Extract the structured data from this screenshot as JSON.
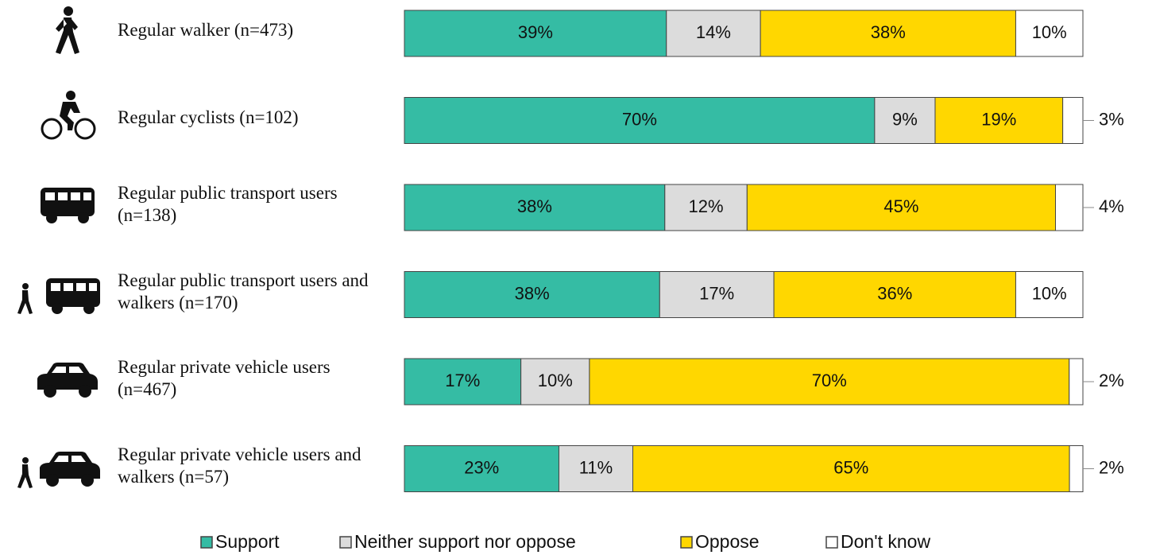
{
  "chart_data": {
    "type": "stacked-bar",
    "categories": [
      "Regular walker (n=473)",
      "Regular cyclists (n=102)",
      "Regular public transport users (n=138)",
      "Regular public transport users and walkers (n=170)",
      "Regular private vehicle users (n=467)",
      "Regular private vehicle users and walkers (n=57)"
    ],
    "series": [
      {
        "name": "Support",
        "color": "#35bca4",
        "values": [
          39,
          70,
          38,
          38,
          17,
          23
        ],
        "value_labels": [
          "39%",
          "70%",
          "38%",
          "38%",
          "17%",
          "23%"
        ]
      },
      {
        "name": "Neither support nor oppose",
        "color": "#dcdcdc",
        "values": [
          14,
          9,
          12,
          17,
          10,
          11
        ],
        "value_labels": [
          "14%",
          "9%",
          "12%",
          "17%",
          "10%",
          "11%"
        ]
      },
      {
        "name": "Oppose",
        "color": "#ffd700",
        "values": [
          38,
          19,
          45,
          36,
          70,
          65
        ],
        "value_labels": [
          "38%",
          "19%",
          "45%",
          "36%",
          "70%",
          "65%"
        ]
      },
      {
        "name": "Don't know",
        "color": "#ffffff",
        "values": [
          10,
          3,
          4,
          10,
          2,
          2
        ],
        "value_labels": [
          "10%",
          "3%",
          "4%",
          "10%",
          "2%",
          "2%"
        ]
      }
    ],
    "legend": "bottom"
  }
}
